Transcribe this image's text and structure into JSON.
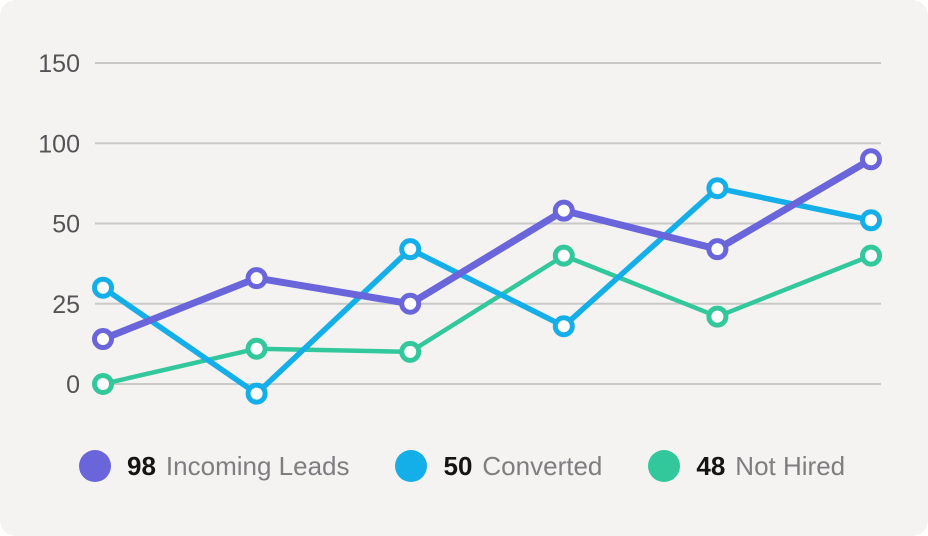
{
  "chart_data": {
    "type": "line",
    "title": "",
    "grid": true,
    "legend_position": "bottom",
    "yticks": [
      0,
      25,
      50,
      100,
      150
    ],
    "axis_note": "y tick marks are evenly spaced (non-linear value axis); no x-axis labels shown",
    "x_point_count": 6,
    "series": [
      {
        "name": "Incoming Leads",
        "color": "#6a65da",
        "line_width": 7,
        "values": [
          14,
          33,
          25,
          58,
          42,
          90
        ]
      },
      {
        "name": "Converted",
        "color": "#14aee8",
        "line_width": 5.5,
        "values": [
          30,
          -3,
          42,
          18,
          72,
          52
        ]
      },
      {
        "name": "Not Hired",
        "color": "#33c89c",
        "line_width": 4.5,
        "values": [
          0,
          11,
          10,
          40,
          21,
          40
        ]
      }
    ]
  },
  "legend": {
    "items": [
      {
        "value": "98",
        "label": "Incoming Leads",
        "color": "#6a65da"
      },
      {
        "value": "50",
        "label": "Converted",
        "color": "#14aee8"
      },
      {
        "value": "48",
        "label": "Not Hired",
        "color": "#33c89c"
      }
    ]
  },
  "style": {
    "page_background": "#ffffff",
    "card_background": "#f4f3f1",
    "gridline_color": "#c9c9c8",
    "tick_label_color": "#545456",
    "legend_value_color": "#141414",
    "legend_label_color": "#7e7e81",
    "marker_fill": "#ffffff"
  }
}
